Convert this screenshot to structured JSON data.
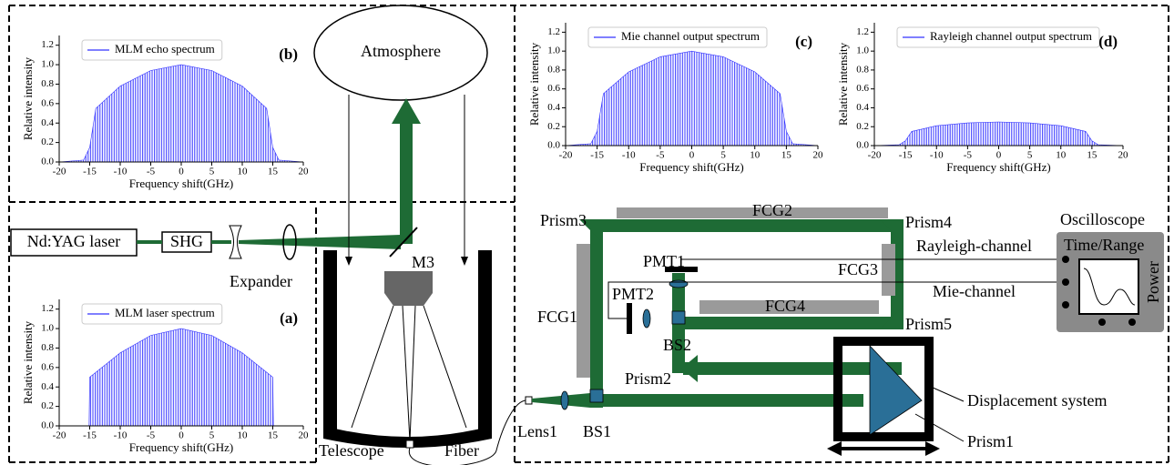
{
  "chart_data": [
    {
      "type": "area",
      "annotation": "(a)",
      "xlabel": "Frequency shift(GHz)",
      "ylabel": "Relative intensity",
      "x": [
        -20,
        -15.1,
        -15,
        -10,
        -5,
        0,
        5,
        10,
        15,
        15.1,
        20
      ],
      "series": [
        {
          "name": "MLM laser spectrum",
          "color": "#3333ff",
          "values": [
            0,
            0,
            0.5,
            0.75,
            0.93,
            1.0,
            0.93,
            0.75,
            0.5,
            0,
            0
          ]
        }
      ],
      "xlim": [
        -20,
        20
      ],
      "xticks": [
        -20,
        -15,
        -10,
        -5,
        0,
        5,
        10,
        15,
        20
      ],
      "ylim": [
        0,
        1.3
      ],
      "yticks": [
        {
          "value": 0,
          "label": "0.0"
        },
        0.2,
        0.4,
        0.6,
        0.8,
        {
          "value": 1,
          "label": "1.0"
        },
        1.2
      ]
    },
    {
      "type": "area",
      "annotation": "(b)",
      "xlabel": "Frequency shift(GHz)",
      "ylabel": "Relative intensity",
      "x": [
        -20,
        -16,
        -15,
        -14,
        -10,
        -5,
        0,
        5,
        10,
        14,
        15,
        16,
        20
      ],
      "series": [
        {
          "name": "MLM echo spectrum",
          "color": "#3333ff",
          "values": [
            0,
            0.02,
            0.15,
            0.55,
            0.78,
            0.94,
            1.0,
            0.94,
            0.78,
            0.55,
            0.15,
            0.02,
            0
          ]
        }
      ],
      "xlim": [
        -20,
        20
      ],
      "xticks": [
        -20,
        -15,
        -10,
        -5,
        0,
        5,
        10,
        15,
        20
      ],
      "ylim": [
        0,
        1.3
      ],
      "yticks": [
        {
          "value": 0,
          "label": "0.0"
        },
        0.2,
        0.4,
        0.6,
        0.8,
        {
          "value": 1,
          "label": "1.0"
        },
        1.2
      ]
    },
    {
      "type": "area",
      "annotation": "(c)",
      "xlabel": "Frequency shift(GHz)",
      "ylabel": "Relative intensity",
      "x": [
        -20,
        -16,
        -15,
        -14,
        -10,
        -5,
        0,
        5,
        10,
        14,
        15,
        16,
        20
      ],
      "series": [
        {
          "name": "Mie channel output spectrum",
          "color": "#3333ff",
          "values": [
            0,
            0.02,
            0.15,
            0.55,
            0.78,
            0.94,
            1.0,
            0.94,
            0.78,
            0.55,
            0.15,
            0.02,
            0
          ]
        }
      ],
      "xlim": [
        -20,
        20
      ],
      "xticks": [
        -20,
        -15,
        -10,
        -5,
        0,
        5,
        10,
        15,
        20
      ],
      "ylim": [
        0,
        1.3
      ],
      "yticks": [
        {
          "value": 0,
          "label": "0.0"
        },
        0.2,
        0.4,
        0.6,
        0.8,
        {
          "value": 1,
          "label": "1.0"
        },
        1.2
      ]
    },
    {
      "type": "area",
      "annotation": "(d)",
      "xlabel": "Frequency shift(GHz)",
      "ylabel": "Relative intensity",
      "x": [
        -20,
        -16,
        -15,
        -14,
        -10,
        -5,
        0,
        5,
        10,
        14,
        15,
        16,
        20
      ],
      "series": [
        {
          "name": "Rayleigh channel output spectrum",
          "color": "#3333ff",
          "values": [
            0,
            0.01,
            0.05,
            0.15,
            0.21,
            0.24,
            0.25,
            0.24,
            0.21,
            0.15,
            0.05,
            0.01,
            0
          ]
        }
      ],
      "xlim": [
        -20,
        20
      ],
      "xticks": [
        -20,
        -15,
        -10,
        -5,
        0,
        5,
        10,
        15,
        20
      ],
      "ylim": [
        0,
        1.3
      ],
      "yticks": [
        {
          "value": 0,
          "label": "0.0"
        },
        0.2,
        0.4,
        0.6,
        0.8,
        {
          "value": 1,
          "label": "1.0"
        },
        1.2
      ]
    }
  ],
  "diagram": {
    "atmosphere": "Atmosphere",
    "laser": "Nd:YAG laser",
    "shg": "SHG",
    "expander": "Expander",
    "m3": "M3",
    "telescope": "Telescope",
    "fiber": "Fiber",
    "lens1": "Lens1",
    "bs1": "BS1",
    "bs2": "BS2",
    "prism1": "Prism1",
    "prism2": "Prism2",
    "prism3": "Prism3",
    "prism4": "Prism4",
    "prism5": "Prism5",
    "fcg1": "FCG1",
    "fcg2": "FCG2",
    "fcg3": "FCG3",
    "fcg4": "FCG4",
    "pmt1": "PMT1",
    "pmt2": "PMT2",
    "oscilloscope": "Oscilloscope",
    "time_range": "Time/Range",
    "power": "Power",
    "rayleigh_channel": "Rayleigh-channel",
    "mie_channel": "Mie-channel",
    "displacement": "Displacement system"
  }
}
